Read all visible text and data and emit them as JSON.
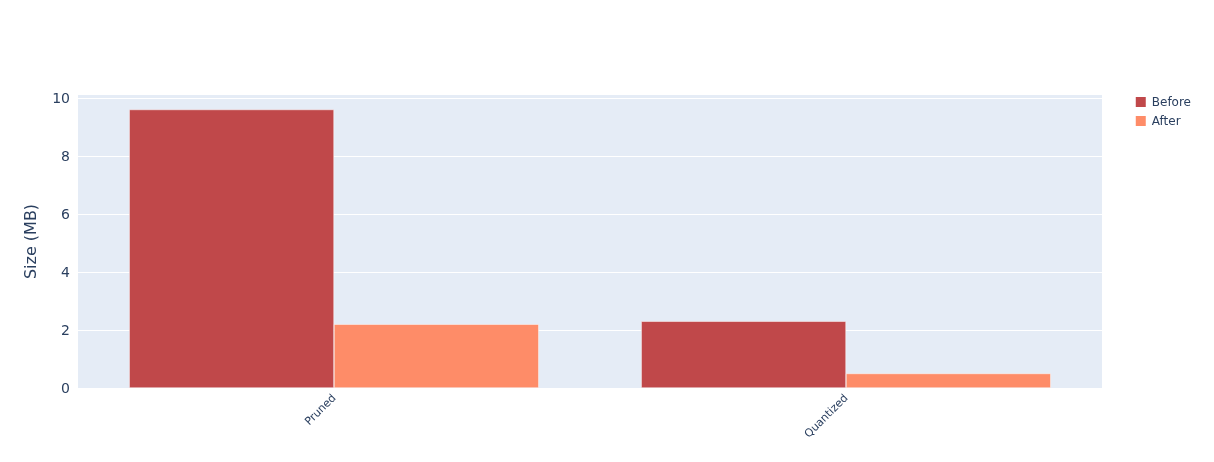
{
  "chart_data": {
    "type": "bar",
    "ylabel": "Size (MB)",
    "categories": [
      "Pruned",
      "Quantized"
    ],
    "series": [
      {
        "name": "Before",
        "color": "#c0484a",
        "values": [
          9.6,
          2.3
        ]
      },
      {
        "name": "After",
        "color": "#fe8c68",
        "values": [
          2.2,
          0.5
        ]
      }
    ],
    "ylim": [
      0,
      10.1
    ],
    "yticks": [
      0,
      2,
      4,
      6,
      8,
      10
    ],
    "grid": "y",
    "legend": "top right"
  }
}
